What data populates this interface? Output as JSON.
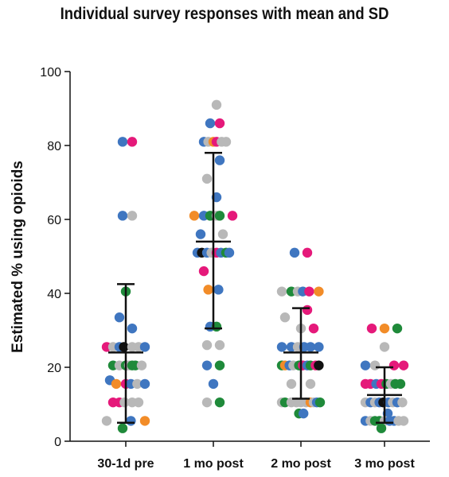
{
  "chart_data": {
    "type": "scatter",
    "title": "Individual survey responses with mean and SD",
    "xlabel": "",
    "ylabel": "Estimated % using opioids",
    "ylim": [
      0,
      100
    ],
    "yticks": [
      0,
      20,
      40,
      60,
      80,
      100
    ],
    "categories": [
      "30-1d pre",
      "1 mo post",
      "2 mo post",
      "3 mo post"
    ],
    "colors": {
      "blue": "#3f76c0",
      "pink": "#e5197a",
      "grey": "#b8b8b8",
      "orange": "#f28c28",
      "green": "#1f8a3a",
      "black": "#111111",
      "axis": "#111111"
    },
    "summary": [
      {
        "category": "30-1d pre",
        "mean": 24,
        "sd_low": 5,
        "sd_high": 42.5
      },
      {
        "category": "1 mo post",
        "mean": 54,
        "sd_low": 30.5,
        "sd_high": 78
      },
      {
        "category": "2 mo post",
        "mean": 24,
        "sd_low": 11.5,
        "sd_high": 36
      },
      {
        "category": "3 mo post",
        "mean": 12.5,
        "sd_low": 5,
        "sd_high": 20
      }
    ],
    "points": [
      {
        "category": "30-1d pre",
        "value": 81,
        "color": "blue",
        "offset": -0.5
      },
      {
        "category": "30-1d pre",
        "value": 81,
        "color": "pink",
        "offset": 1
      },
      {
        "category": "30-1d pre",
        "value": 61,
        "color": "blue",
        "offset": -0.5
      },
      {
        "category": "30-1d pre",
        "value": 61,
        "color": "grey",
        "offset": 1
      },
      {
        "category": "30-1d pre",
        "value": 40.5,
        "color": "green",
        "offset": 0
      },
      {
        "category": "30-1d pre",
        "value": 33.5,
        "color": "blue",
        "offset": -1
      },
      {
        "category": "30-1d pre",
        "value": 30.5,
        "color": "blue",
        "offset": 1
      },
      {
        "category": "30-1d pre",
        "value": 25.5,
        "color": "pink",
        "offset": -3
      },
      {
        "category": "30-1d pre",
        "value": 25.5,
        "color": "grey",
        "offset": -2
      },
      {
        "category": "30-1d pre",
        "value": 25.5,
        "color": "blue",
        "offset": -1
      },
      {
        "category": "30-1d pre",
        "value": 25.5,
        "color": "black",
        "offset": -0.3
      },
      {
        "category": "30-1d pre",
        "value": 25.5,
        "color": "grey",
        "offset": 1
      },
      {
        "category": "30-1d pre",
        "value": 25.5,
        "color": "grey",
        "offset": 2
      },
      {
        "category": "30-1d pre",
        "value": 25.5,
        "color": "blue",
        "offset": 3
      },
      {
        "category": "30-1d pre",
        "value": 20.5,
        "color": "green",
        "offset": -2
      },
      {
        "category": "30-1d pre",
        "value": 20.5,
        "color": "grey",
        "offset": -1
      },
      {
        "category": "30-1d pre",
        "value": 20.5,
        "color": "green",
        "offset": 0
      },
      {
        "category": "30-1d pre",
        "value": 20.5,
        "color": "grey",
        "offset": 0.5
      },
      {
        "category": "30-1d pre",
        "value": 20.5,
        "color": "green",
        "offset": 1
      },
      {
        "category": "30-1d pre",
        "value": 20.5,
        "color": "green",
        "offset": 1.5
      },
      {
        "category": "30-1d pre",
        "value": 20.5,
        "color": "grey",
        "offset": 2.5
      },
      {
        "category": "30-1d pre",
        "value": 16.5,
        "color": "blue",
        "offset": -2.5
      },
      {
        "category": "30-1d pre",
        "value": 15.5,
        "color": "orange",
        "offset": -1.5
      },
      {
        "category": "30-1d pre",
        "value": 15.5,
        "color": "pink",
        "offset": 0
      },
      {
        "category": "30-1d pre",
        "value": 15.5,
        "color": "blue",
        "offset": 0.8
      },
      {
        "category": "30-1d pre",
        "value": 15.5,
        "color": "grey",
        "offset": 1.8
      },
      {
        "category": "30-1d pre",
        "value": 15.5,
        "color": "blue",
        "offset": 3
      },
      {
        "category": "30-1d pre",
        "value": 10.5,
        "color": "pink",
        "offset": -2
      },
      {
        "category": "30-1d pre",
        "value": 10.5,
        "color": "pink",
        "offset": -1
      },
      {
        "category": "30-1d pre",
        "value": 10.5,
        "color": "grey",
        "offset": -0.2
      },
      {
        "category": "30-1d pre",
        "value": 10.5,
        "color": "grey",
        "offset": 1
      },
      {
        "category": "30-1d pre",
        "value": 10.5,
        "color": "grey",
        "offset": 2
      },
      {
        "category": "30-1d pre",
        "value": 5.5,
        "color": "grey",
        "offset": -3
      },
      {
        "category": "30-1d pre",
        "value": 5.5,
        "color": "blue",
        "offset": 0.8
      },
      {
        "category": "30-1d pre",
        "value": 5.5,
        "color": "orange",
        "offset": 3
      },
      {
        "category": "30-1d pre",
        "value": 3.5,
        "color": "green",
        "offset": -0.5
      },
      {
        "category": "1 mo post",
        "value": 91,
        "color": "grey",
        "offset": 0.5
      },
      {
        "category": "1 mo post",
        "value": 86,
        "color": "blue",
        "offset": -0.5
      },
      {
        "category": "1 mo post",
        "value": 86,
        "color": "pink",
        "offset": 1
      },
      {
        "category": "1 mo post",
        "value": 81,
        "color": "blue",
        "offset": -1.5
      },
      {
        "category": "1 mo post",
        "value": 81,
        "color": "grey",
        "offset": -0.8
      },
      {
        "category": "1 mo post",
        "value": 81,
        "color": "orange",
        "offset": 0
      },
      {
        "category": "1 mo post",
        "value": 81,
        "color": "pink",
        "offset": 0.5
      },
      {
        "category": "1 mo post",
        "value": 81,
        "color": "grey",
        "offset": 1.3
      },
      {
        "category": "1 mo post",
        "value": 81,
        "color": "grey",
        "offset": 2
      },
      {
        "category": "1 mo post",
        "value": 76,
        "color": "blue",
        "offset": 1
      },
      {
        "category": "1 mo post",
        "value": 71,
        "color": "grey",
        "offset": -1
      },
      {
        "category": "1 mo post",
        "value": 66,
        "color": "blue",
        "offset": 0.5
      },
      {
        "category": "1 mo post",
        "value": 61,
        "color": "orange",
        "offset": -3
      },
      {
        "category": "1 mo post",
        "value": 61,
        "color": "blue",
        "offset": -1.5
      },
      {
        "category": "1 mo post",
        "value": 61,
        "color": "green",
        "offset": -0.5
      },
      {
        "category": "1 mo post",
        "value": 61,
        "color": "grey",
        "offset": 0.5
      },
      {
        "category": "1 mo post",
        "value": 61,
        "color": "green",
        "offset": 1
      },
      {
        "category": "1 mo post",
        "value": 61,
        "color": "pink",
        "offset": 3
      },
      {
        "category": "1 mo post",
        "value": 56,
        "color": "blue",
        "offset": -2
      },
      {
        "category": "1 mo post",
        "value": 56,
        "color": "grey",
        "offset": 1.5
      },
      {
        "category": "1 mo post",
        "value": 51,
        "color": "blue",
        "offset": -2.5
      },
      {
        "category": "1 mo post",
        "value": 51,
        "color": "black",
        "offset": -1.8
      },
      {
        "category": "1 mo post",
        "value": 51,
        "color": "blue",
        "offset": -1
      },
      {
        "category": "1 mo post",
        "value": 51,
        "color": "grey",
        "offset": -0.3
      },
      {
        "category": "1 mo post",
        "value": 51,
        "color": "pink",
        "offset": 0.5
      },
      {
        "category": "1 mo post",
        "value": 51,
        "color": "blue",
        "offset": 1.2
      },
      {
        "category": "1 mo post",
        "value": 51,
        "color": "green",
        "offset": 2
      },
      {
        "category": "1 mo post",
        "value": 51,
        "color": "blue",
        "offset": 2.5
      },
      {
        "category": "1 mo post",
        "value": 46,
        "color": "pink",
        "offset": -1.5
      },
      {
        "category": "1 mo post",
        "value": 41,
        "color": "orange",
        "offset": -0.8
      },
      {
        "category": "1 mo post",
        "value": 41,
        "color": "blue",
        "offset": 0.8
      },
      {
        "category": "1 mo post",
        "value": 31,
        "color": "blue",
        "offset": -0.5
      },
      {
        "category": "1 mo post",
        "value": 31,
        "color": "green",
        "offset": 0.5
      },
      {
        "category": "1 mo post",
        "value": 26,
        "color": "grey",
        "offset": -1
      },
      {
        "category": "1 mo post",
        "value": 26,
        "color": "grey",
        "offset": 1
      },
      {
        "category": "1 mo post",
        "value": 20.5,
        "color": "blue",
        "offset": -1
      },
      {
        "category": "1 mo post",
        "value": 20.5,
        "color": "green",
        "offset": 1
      },
      {
        "category": "1 mo post",
        "value": 15.5,
        "color": "blue",
        "offset": 0
      },
      {
        "category": "1 mo post",
        "value": 10.5,
        "color": "grey",
        "offset": -1
      },
      {
        "category": "1 mo post",
        "value": 10.5,
        "color": "green",
        "offset": 1
      },
      {
        "category": "2 mo post",
        "value": 51,
        "color": "blue",
        "offset": -1
      },
      {
        "category": "2 mo post",
        "value": 51,
        "color": "pink",
        "offset": 1
      },
      {
        "category": "2 mo post",
        "value": 40.5,
        "color": "grey",
        "offset": -3
      },
      {
        "category": "2 mo post",
        "value": 40.5,
        "color": "green",
        "offset": -1.5
      },
      {
        "category": "2 mo post",
        "value": 40.5,
        "color": "grey",
        "offset": -0.5
      },
      {
        "category": "2 mo post",
        "value": 40.5,
        "color": "blue",
        "offset": 0.3
      },
      {
        "category": "2 mo post",
        "value": 40.5,
        "color": "pink",
        "offset": 1.3
      },
      {
        "category": "2 mo post",
        "value": 40.5,
        "color": "orange",
        "offset": 2.8
      },
      {
        "category": "2 mo post",
        "value": 35.5,
        "color": "pink",
        "offset": 1
      },
      {
        "category": "2 mo post",
        "value": 33.5,
        "color": "grey",
        "offset": -2.5
      },
      {
        "category": "2 mo post",
        "value": 30.5,
        "color": "grey",
        "offset": 0
      },
      {
        "category": "2 mo post",
        "value": 30.5,
        "color": "pink",
        "offset": 2
      },
      {
        "category": "2 mo post",
        "value": 25.5,
        "color": "blue",
        "offset": -3
      },
      {
        "category": "2 mo post",
        "value": 25.5,
        "color": "blue",
        "offset": -1.5
      },
      {
        "category": "2 mo post",
        "value": 25.5,
        "color": "grey",
        "offset": -0.5
      },
      {
        "category": "2 mo post",
        "value": 25.5,
        "color": "blue",
        "offset": 0.5
      },
      {
        "category": "2 mo post",
        "value": 25.5,
        "color": "blue",
        "offset": 1.5
      },
      {
        "category": "2 mo post",
        "value": 25.5,
        "color": "blue",
        "offset": 2.8
      },
      {
        "category": "2 mo post",
        "value": 20.5,
        "color": "green",
        "offset": -3
      },
      {
        "category": "2 mo post",
        "value": 20.5,
        "color": "orange",
        "offset": -2.5
      },
      {
        "category": "2 mo post",
        "value": 20.5,
        "color": "blue",
        "offset": -1.8
      },
      {
        "category": "2 mo post",
        "value": 20.5,
        "color": "grey",
        "offset": -1.2
      },
      {
        "category": "2 mo post",
        "value": 20.5,
        "color": "green",
        "offset": -0.3
      },
      {
        "category": "2 mo post",
        "value": 20.5,
        "color": "pink",
        "offset": 0.3
      },
      {
        "category": "2 mo post",
        "value": 20.5,
        "color": "blue",
        "offset": 1
      },
      {
        "category": "2 mo post",
        "value": 20.5,
        "color": "green",
        "offset": 1.5
      },
      {
        "category": "2 mo post",
        "value": 20.5,
        "color": "pink",
        "offset": 2.3
      },
      {
        "category": "2 mo post",
        "value": 20.5,
        "color": "black",
        "offset": 2.8
      },
      {
        "category": "2 mo post",
        "value": 15.5,
        "color": "grey",
        "offset": -1.5
      },
      {
        "category": "2 mo post",
        "value": 15.5,
        "color": "grey",
        "offset": 1.5
      },
      {
        "category": "2 mo post",
        "value": 10.5,
        "color": "grey",
        "offset": -3
      },
      {
        "category": "2 mo post",
        "value": 10.5,
        "color": "green",
        "offset": -2.5
      },
      {
        "category": "2 mo post",
        "value": 10.5,
        "color": "grey",
        "offset": -1.5
      },
      {
        "category": "2 mo post",
        "value": 10.5,
        "color": "grey",
        "offset": -0.7
      },
      {
        "category": "2 mo post",
        "value": 10.5,
        "color": "grey",
        "offset": 0
      },
      {
        "category": "2 mo post",
        "value": 10.5,
        "color": "grey",
        "offset": 0.8
      },
      {
        "category": "2 mo post",
        "value": 10.5,
        "color": "orange",
        "offset": 1.5
      },
      {
        "category": "2 mo post",
        "value": 10.5,
        "color": "grey",
        "offset": 2
      },
      {
        "category": "2 mo post",
        "value": 10.5,
        "color": "blue",
        "offset": 2.5
      },
      {
        "category": "2 mo post",
        "value": 10.5,
        "color": "green",
        "offset": 3
      },
      {
        "category": "2 mo post",
        "value": 7.5,
        "color": "green",
        "offset": -0.3
      },
      {
        "category": "2 mo post",
        "value": 7.5,
        "color": "blue",
        "offset": 0.4
      },
      {
        "category": "3 mo post",
        "value": 30.5,
        "color": "pink",
        "offset": -2
      },
      {
        "category": "3 mo post",
        "value": 30.5,
        "color": "orange",
        "offset": 0
      },
      {
        "category": "3 mo post",
        "value": 30.5,
        "color": "green",
        "offset": 2
      },
      {
        "category": "3 mo post",
        "value": 25.5,
        "color": "grey",
        "offset": 0
      },
      {
        "category": "3 mo post",
        "value": 20.5,
        "color": "blue",
        "offset": -3
      },
      {
        "category": "3 mo post",
        "value": 20.5,
        "color": "grey",
        "offset": -1.5
      },
      {
        "category": "3 mo post",
        "value": 20.5,
        "color": "pink",
        "offset": 1.5
      },
      {
        "category": "3 mo post",
        "value": 20.5,
        "color": "pink",
        "offset": 3
      },
      {
        "category": "3 mo post",
        "value": 15.5,
        "color": "pink",
        "offset": -3
      },
      {
        "category": "3 mo post",
        "value": 15.5,
        "color": "pink",
        "offset": -2.2
      },
      {
        "category": "3 mo post",
        "value": 15.5,
        "color": "blue",
        "offset": -1.3
      },
      {
        "category": "3 mo post",
        "value": 15.5,
        "color": "pink",
        "offset": -0.5
      },
      {
        "category": "3 mo post",
        "value": 15.5,
        "color": "green",
        "offset": 0.3
      },
      {
        "category": "3 mo post",
        "value": 15.5,
        "color": "grey",
        "offset": 1
      },
      {
        "category": "3 mo post",
        "value": 15.5,
        "color": "green",
        "offset": 1.7
      },
      {
        "category": "3 mo post",
        "value": 15.5,
        "color": "green",
        "offset": 2.5
      },
      {
        "category": "3 mo post",
        "value": 10.5,
        "color": "grey",
        "offset": -3
      },
      {
        "category": "3 mo post",
        "value": 10.5,
        "color": "blue",
        "offset": -2.2
      },
      {
        "category": "3 mo post",
        "value": 10.5,
        "color": "grey",
        "offset": -1.5
      },
      {
        "category": "3 mo post",
        "value": 10.5,
        "color": "blue",
        "offset": -0.8
      },
      {
        "category": "3 mo post",
        "value": 10.5,
        "color": "black",
        "offset": -0.2
      },
      {
        "category": "3 mo post",
        "value": 10.5,
        "color": "blue",
        "offset": 0.6
      },
      {
        "category": "3 mo post",
        "value": 10.5,
        "color": "grey",
        "offset": 1.3
      },
      {
        "category": "3 mo post",
        "value": 10.5,
        "color": "blue",
        "offset": 2
      },
      {
        "category": "3 mo post",
        "value": 10.5,
        "color": "grey",
        "offset": 2.8
      },
      {
        "category": "3 mo post",
        "value": 7.5,
        "color": "blue",
        "offset": 0.5
      },
      {
        "category": "3 mo post",
        "value": 5.5,
        "color": "blue",
        "offset": -3
      },
      {
        "category": "3 mo post",
        "value": 5.5,
        "color": "grey",
        "offset": -2.2
      },
      {
        "category": "3 mo post",
        "value": 5.5,
        "color": "green",
        "offset": -1.5
      },
      {
        "category": "3 mo post",
        "value": 5.5,
        "color": "green",
        "offset": -0.8
      },
      {
        "category": "3 mo post",
        "value": 5.5,
        "color": "grey",
        "offset": 0
      },
      {
        "category": "3 mo post",
        "value": 5.5,
        "color": "blue",
        "offset": 0.8
      },
      {
        "category": "3 mo post",
        "value": 5.5,
        "color": "blue",
        "offset": 1.5
      },
      {
        "category": "3 mo post",
        "value": 5.5,
        "color": "grey",
        "offset": 2.2
      },
      {
        "category": "3 mo post",
        "value": 5.5,
        "color": "grey",
        "offset": 3
      },
      {
        "category": "3 mo post",
        "value": 3.5,
        "color": "green",
        "offset": -0.5
      }
    ]
  }
}
